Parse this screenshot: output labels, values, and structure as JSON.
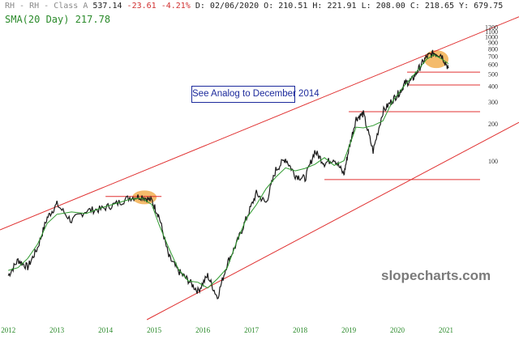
{
  "header": {
    "symbol": "RH - RH - Class A",
    "last": "537.14",
    "change": "-23.61",
    "change_pct": "-4.21%",
    "d": "D: 02/06/2020",
    "o": "O: 210.51",
    "h": "H: 221.91",
    "l": "L: 208.00",
    "c": "C: 218.65",
    "y": "Y: 679.75",
    "sma": "SMA(20 Day) 217.78"
  },
  "annotation": "See Analog to December 2014",
  "watermark": "slopecharts.com",
  "colors": {
    "price": "#1a1a1a",
    "sma": "#2e9a2e",
    "trend": "#e03030",
    "highlight": "#f0a43a",
    "annotation": "#1c2a9c",
    "text_green": "#2a8a2a"
  },
  "chart_data": {
    "type": "line",
    "scale": "log",
    "x": [
      2012.0,
      2012.2,
      2012.4,
      2012.6,
      2012.8,
      2013.0,
      2013.3,
      2013.6,
      2013.9,
      2014.2,
      2014.5,
      2014.75,
      2014.95,
      2015.1,
      2015.3,
      2015.5,
      2015.7,
      2015.9,
      2016.1,
      2016.3,
      2016.5,
      2016.7,
      2016.9,
      2017.1,
      2017.3,
      2017.5,
      2017.7,
      2017.9,
      2018.1,
      2018.3,
      2018.5,
      2018.7,
      2018.9,
      2019.0,
      2019.15,
      2019.3,
      2019.5,
      2019.7,
      2019.9,
      2020.05,
      2020.15,
      2020.3,
      2020.45,
      2020.6,
      2020.75,
      2020.9,
      2021.05
    ],
    "y": [
      12,
      16,
      14,
      20,
      35,
      45,
      33,
      40,
      41,
      45,
      51,
      52,
      48,
      36,
      17,
      13,
      11,
      9,
      12,
      8,
      15,
      22,
      35,
      55,
      46,
      85,
      105,
      77,
      72,
      120,
      96,
      105,
      78,
      125,
      220,
      240,
      120,
      250,
      310,
      360,
      420,
      450,
      560,
      690,
      740,
      720,
      560
    ],
    "sma_label": "SMA(20 Day)",
    "y_ticks": [
      100,
      200,
      300,
      400,
      500,
      600,
      700,
      800,
      900,
      1000,
      1100,
      1200
    ],
    "x_ticks": [
      "2012",
      "2013",
      "2014",
      "2015",
      "2016",
      "2017",
      "2018",
      "2019",
      "2020",
      "2021"
    ],
    "x_range": [
      2011.83,
      2022.5
    ],
    "y_range": [
      5.3,
      1300
    ],
    "trendlines": [
      {
        "x": [
          2011.83,
          2022.5
        ],
        "y": [
          28,
          1450
        ]
      },
      {
        "x": [
          2014.85,
          2022.5
        ],
        "y": [
          5.3,
          205
        ]
      }
    ],
    "levels": [
      {
        "y": 52,
        "x": [
          2014.0,
          2015.15
        ]
      },
      {
        "y": 71,
        "x": [
          2018.5,
          2021.7
        ]
      },
      {
        "y": 250,
        "x": [
          2019.0,
          2021.7
        ]
      },
      {
        "y": 410,
        "x": [
          2020.2,
          2021.7
        ]
      },
      {
        "y": 520,
        "x": [
          2020.2,
          2021.7
        ]
      }
    ],
    "highlights": [
      {
        "x": [
          2014.55,
          2015.05
        ],
        "y": [
          45,
          58
        ]
      },
      {
        "x": [
          2020.55,
          2021.05
        ],
        "y": [
          560,
          780
        ]
      }
    ]
  }
}
